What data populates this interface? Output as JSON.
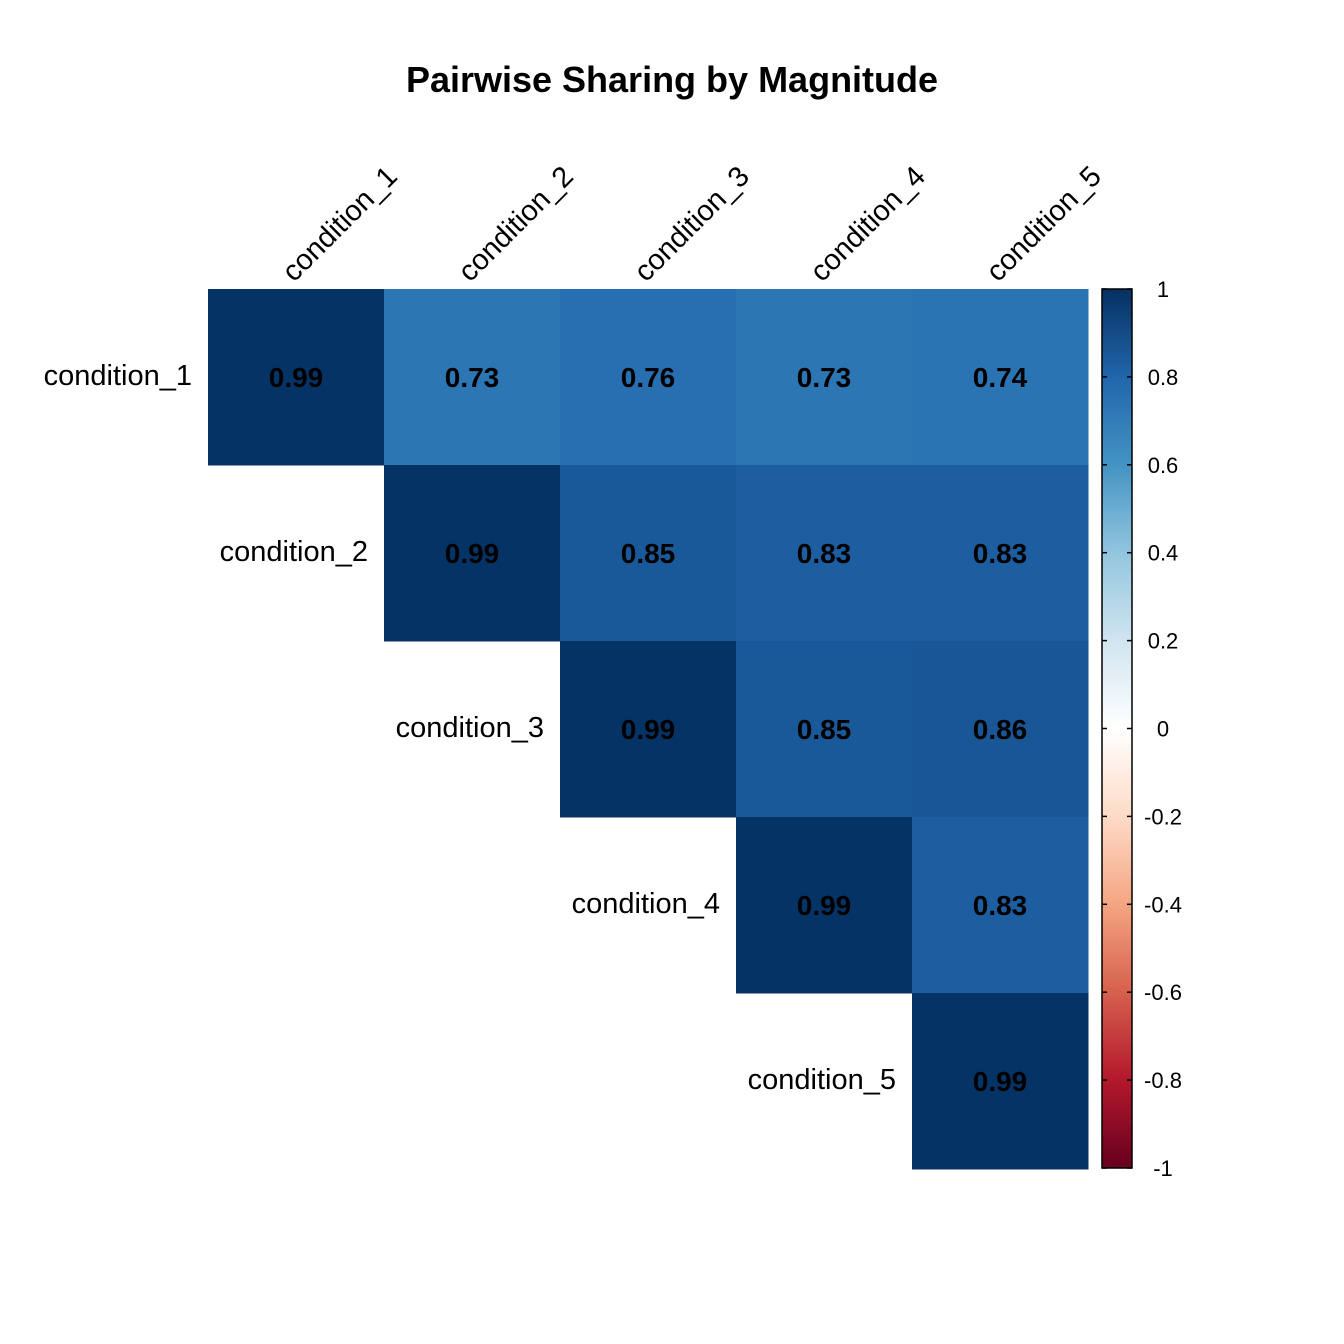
{
  "chart_data": {
    "type": "heatmap",
    "title": "Pairwise Sharing by Magnitude",
    "layout": "upper-triangle",
    "rows": [
      "condition_1",
      "condition_2",
      "condition_3",
      "condition_4",
      "condition_5"
    ],
    "columns": [
      "condition_1",
      "condition_2",
      "condition_3",
      "condition_4",
      "condition_5"
    ],
    "values": [
      [
        0.99,
        0.73,
        0.76,
        0.73,
        0.74
      ],
      [
        null,
        0.99,
        0.85,
        0.83,
        0.83
      ],
      [
        null,
        null,
        0.99,
        0.85,
        0.86
      ],
      [
        null,
        null,
        null,
        0.99,
        0.83
      ],
      [
        null,
        null,
        null,
        null,
        0.99
      ]
    ],
    "colorbar": {
      "range": [
        -1,
        1
      ],
      "ticks": [
        1,
        0.8,
        0.6,
        0.4,
        0.2,
        0,
        -0.2,
        -0.4,
        -0.6,
        -0.8,
        -1
      ],
      "tick_labels": [
        "1",
        "0.8",
        "0.6",
        "0.4",
        "0.2",
        "0",
        "-0.2",
        "-0.4",
        "-0.6",
        "-0.8",
        "-1"
      ],
      "colors": [
        "#67001F",
        "#B2182B",
        "#D6604D",
        "#F4A582",
        "#FDDBC7",
        "#FFFFFF",
        "#D1E5F0",
        "#92C5DE",
        "#4393C3",
        "#2166AC",
        "#053061"
      ],
      "position": "right"
    }
  }
}
